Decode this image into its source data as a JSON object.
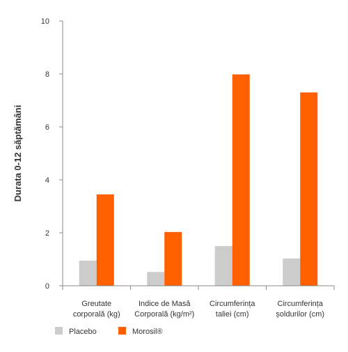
{
  "chart_data": {
    "type": "bar",
    "title": "",
    "xlabel": "",
    "ylabel": "Durata 0-12 săptămâni",
    "ylim": [
      0,
      10
    ],
    "yticks": [
      0,
      2,
      4,
      6,
      8,
      10
    ],
    "categories": [
      [
        "Greutate",
        "corporală (kg)"
      ],
      [
        "Indice de Masă",
        "Corporală (kg/m²)"
      ],
      [
        "Circumferința",
        "taliei (cm)"
      ],
      [
        "Circumferința",
        "șoldurilor (cm)"
      ]
    ],
    "series": [
      {
        "name": "Placebo",
        "color": "#cccccc",
        "values": [
          0.95,
          0.52,
          1.5,
          1.03
        ]
      },
      {
        "name": "Morosil®",
        "color": "#ff5f00",
        "values": [
          3.45,
          2.03,
          7.98,
          7.3
        ]
      }
    ],
    "grid": false,
    "legend_position": "bottom-left"
  }
}
